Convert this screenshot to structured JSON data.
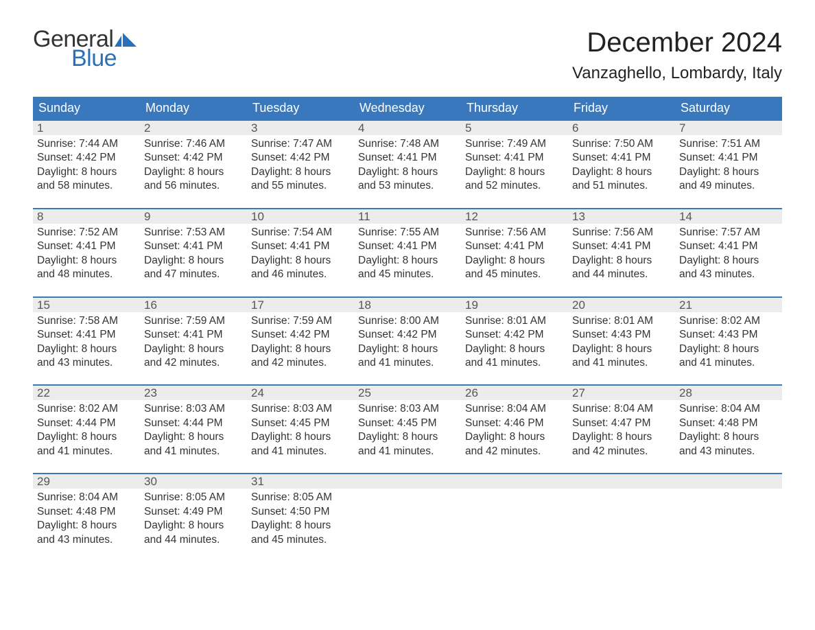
{
  "logo": {
    "word1": "General",
    "word2": "Blue"
  },
  "title": "December 2024",
  "location": "Vanzaghello, Lombardy, Italy",
  "colors": {
    "header_bg": "#3a78bd",
    "header_text": "#ffffff",
    "daynum_bg": "#ececec",
    "daynum_border": "#3a78bd",
    "brand_blue": "#2a70b8"
  },
  "day_headers": [
    "Sunday",
    "Monday",
    "Tuesday",
    "Wednesday",
    "Thursday",
    "Friday",
    "Saturday"
  ],
  "weeks": [
    [
      {
        "n": "1",
        "sr": "7:44 AM",
        "ss": "4:42 PM",
        "dl1": "Daylight: 8 hours",
        "dl2": "and 58 minutes."
      },
      {
        "n": "2",
        "sr": "7:46 AM",
        "ss": "4:42 PM",
        "dl1": "Daylight: 8 hours",
        "dl2": "and 56 minutes."
      },
      {
        "n": "3",
        "sr": "7:47 AM",
        "ss": "4:42 PM",
        "dl1": "Daylight: 8 hours",
        "dl2": "and 55 minutes."
      },
      {
        "n": "4",
        "sr": "7:48 AM",
        "ss": "4:41 PM",
        "dl1": "Daylight: 8 hours",
        "dl2": "and 53 minutes."
      },
      {
        "n": "5",
        "sr": "7:49 AM",
        "ss": "4:41 PM",
        "dl1": "Daylight: 8 hours",
        "dl2": "and 52 minutes."
      },
      {
        "n": "6",
        "sr": "7:50 AM",
        "ss": "4:41 PM",
        "dl1": "Daylight: 8 hours",
        "dl2": "and 51 minutes."
      },
      {
        "n": "7",
        "sr": "7:51 AM",
        "ss": "4:41 PM",
        "dl1": "Daylight: 8 hours",
        "dl2": "and 49 minutes."
      }
    ],
    [
      {
        "n": "8",
        "sr": "7:52 AM",
        "ss": "4:41 PM",
        "dl1": "Daylight: 8 hours",
        "dl2": "and 48 minutes."
      },
      {
        "n": "9",
        "sr": "7:53 AM",
        "ss": "4:41 PM",
        "dl1": "Daylight: 8 hours",
        "dl2": "and 47 minutes."
      },
      {
        "n": "10",
        "sr": "7:54 AM",
        "ss": "4:41 PM",
        "dl1": "Daylight: 8 hours",
        "dl2": "and 46 minutes."
      },
      {
        "n": "11",
        "sr": "7:55 AM",
        "ss": "4:41 PM",
        "dl1": "Daylight: 8 hours",
        "dl2": "and 45 minutes."
      },
      {
        "n": "12",
        "sr": "7:56 AM",
        "ss": "4:41 PM",
        "dl1": "Daylight: 8 hours",
        "dl2": "and 45 minutes."
      },
      {
        "n": "13",
        "sr": "7:56 AM",
        "ss": "4:41 PM",
        "dl1": "Daylight: 8 hours",
        "dl2": "and 44 minutes."
      },
      {
        "n": "14",
        "sr": "7:57 AM",
        "ss": "4:41 PM",
        "dl1": "Daylight: 8 hours",
        "dl2": "and 43 minutes."
      }
    ],
    [
      {
        "n": "15",
        "sr": "7:58 AM",
        "ss": "4:41 PM",
        "dl1": "Daylight: 8 hours",
        "dl2": "and 43 minutes."
      },
      {
        "n": "16",
        "sr": "7:59 AM",
        "ss": "4:41 PM",
        "dl1": "Daylight: 8 hours",
        "dl2": "and 42 minutes."
      },
      {
        "n": "17",
        "sr": "7:59 AM",
        "ss": "4:42 PM",
        "dl1": "Daylight: 8 hours",
        "dl2": "and 42 minutes."
      },
      {
        "n": "18",
        "sr": "8:00 AM",
        "ss": "4:42 PM",
        "dl1": "Daylight: 8 hours",
        "dl2": "and 41 minutes."
      },
      {
        "n": "19",
        "sr": "8:01 AM",
        "ss": "4:42 PM",
        "dl1": "Daylight: 8 hours",
        "dl2": "and 41 minutes."
      },
      {
        "n": "20",
        "sr": "8:01 AM",
        "ss": "4:43 PM",
        "dl1": "Daylight: 8 hours",
        "dl2": "and 41 minutes."
      },
      {
        "n": "21",
        "sr": "8:02 AM",
        "ss": "4:43 PM",
        "dl1": "Daylight: 8 hours",
        "dl2": "and 41 minutes."
      }
    ],
    [
      {
        "n": "22",
        "sr": "8:02 AM",
        "ss": "4:44 PM",
        "dl1": "Daylight: 8 hours",
        "dl2": "and 41 minutes."
      },
      {
        "n": "23",
        "sr": "8:03 AM",
        "ss": "4:44 PM",
        "dl1": "Daylight: 8 hours",
        "dl2": "and 41 minutes."
      },
      {
        "n": "24",
        "sr": "8:03 AM",
        "ss": "4:45 PM",
        "dl1": "Daylight: 8 hours",
        "dl2": "and 41 minutes."
      },
      {
        "n": "25",
        "sr": "8:03 AM",
        "ss": "4:45 PM",
        "dl1": "Daylight: 8 hours",
        "dl2": "and 41 minutes."
      },
      {
        "n": "26",
        "sr": "8:04 AM",
        "ss": "4:46 PM",
        "dl1": "Daylight: 8 hours",
        "dl2": "and 42 minutes."
      },
      {
        "n": "27",
        "sr": "8:04 AM",
        "ss": "4:47 PM",
        "dl1": "Daylight: 8 hours",
        "dl2": "and 42 minutes."
      },
      {
        "n": "28",
        "sr": "8:04 AM",
        "ss": "4:48 PM",
        "dl1": "Daylight: 8 hours",
        "dl2": "and 43 minutes."
      }
    ],
    [
      {
        "n": "29",
        "sr": "8:04 AM",
        "ss": "4:48 PM",
        "dl1": "Daylight: 8 hours",
        "dl2": "and 43 minutes."
      },
      {
        "n": "30",
        "sr": "8:05 AM",
        "ss": "4:49 PM",
        "dl1": "Daylight: 8 hours",
        "dl2": "and 44 minutes."
      },
      {
        "n": "31",
        "sr": "8:05 AM",
        "ss": "4:50 PM",
        "dl1": "Daylight: 8 hours",
        "dl2": "and 45 minutes."
      },
      null,
      null,
      null,
      null
    ]
  ],
  "labels": {
    "sunrise_prefix": "Sunrise: ",
    "sunset_prefix": "Sunset: "
  }
}
